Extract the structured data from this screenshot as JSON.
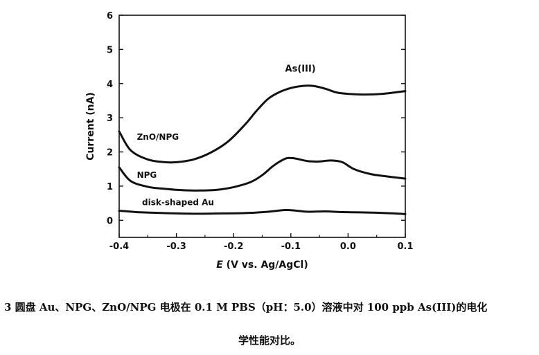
{
  "chart_data": {
    "type": "line",
    "xlabel_italic": "E",
    "xlabel_rest": " (V vs. Ag/AgCl)",
    "ylabel": "Current (nA)",
    "xlim": [
      -0.4,
      0.1
    ],
    "ylim": [
      -0.5,
      6
    ],
    "xticks": [
      "-0.4",
      "-0.3",
      "-0.2",
      "-0.1",
      "0.0",
      "0.1"
    ],
    "yticks": [
      "0",
      "1",
      "2",
      "3",
      "4",
      "5",
      "6"
    ],
    "grid": false,
    "peak_annotation": "As(III)",
    "series": [
      {
        "name": "ZnO/NPG",
        "color": "#111111",
        "x": [
          -0.4,
          -0.38,
          -0.35,
          -0.32,
          -0.3,
          -0.27,
          -0.24,
          -0.21,
          -0.18,
          -0.16,
          -0.14,
          -0.12,
          -0.1,
          -0.08,
          -0.06,
          -0.04,
          -0.02,
          0.0,
          0.03,
          0.06,
          0.1
        ],
        "y": [
          2.6,
          2.05,
          1.78,
          1.7,
          1.7,
          1.78,
          1.98,
          2.3,
          2.8,
          3.2,
          3.55,
          3.75,
          3.87,
          3.93,
          3.93,
          3.85,
          3.74,
          3.7,
          3.68,
          3.7,
          3.78
        ]
      },
      {
        "name": "NPG",
        "color": "#111111",
        "x": [
          -0.4,
          -0.38,
          -0.35,
          -0.32,
          -0.29,
          -0.26,
          -0.23,
          -0.2,
          -0.17,
          -0.15,
          -0.13,
          -0.11,
          -0.1,
          -0.09,
          -0.07,
          -0.05,
          -0.03,
          -0.01,
          0.01,
          0.04,
          0.07,
          0.1
        ],
        "y": [
          1.55,
          1.15,
          0.98,
          0.92,
          0.88,
          0.87,
          0.89,
          0.97,
          1.12,
          1.32,
          1.6,
          1.8,
          1.82,
          1.8,
          1.73,
          1.72,
          1.75,
          1.7,
          1.5,
          1.35,
          1.28,
          1.22
        ]
      },
      {
        "name": "disk-shaped Au",
        "color": "#111111",
        "x": [
          -0.4,
          -0.37,
          -0.34,
          -0.3,
          -0.26,
          -0.22,
          -0.18,
          -0.14,
          -0.11,
          -0.09,
          -0.07,
          -0.04,
          -0.01,
          0.02,
          0.05,
          0.08,
          0.1
        ],
        "y": [
          0.28,
          0.24,
          0.22,
          0.2,
          0.19,
          0.2,
          0.21,
          0.25,
          0.3,
          0.28,
          0.25,
          0.26,
          0.24,
          0.23,
          0.22,
          0.2,
          0.18
        ]
      }
    ]
  },
  "caption": {
    "line1": "3 圆盘 Au、NPG、ZnO/NPG 电极在 0.1 M PBS（pH：5.0）溶液中对 100 ppb As(III)的电化",
    "line2": "学性能对比。"
  }
}
